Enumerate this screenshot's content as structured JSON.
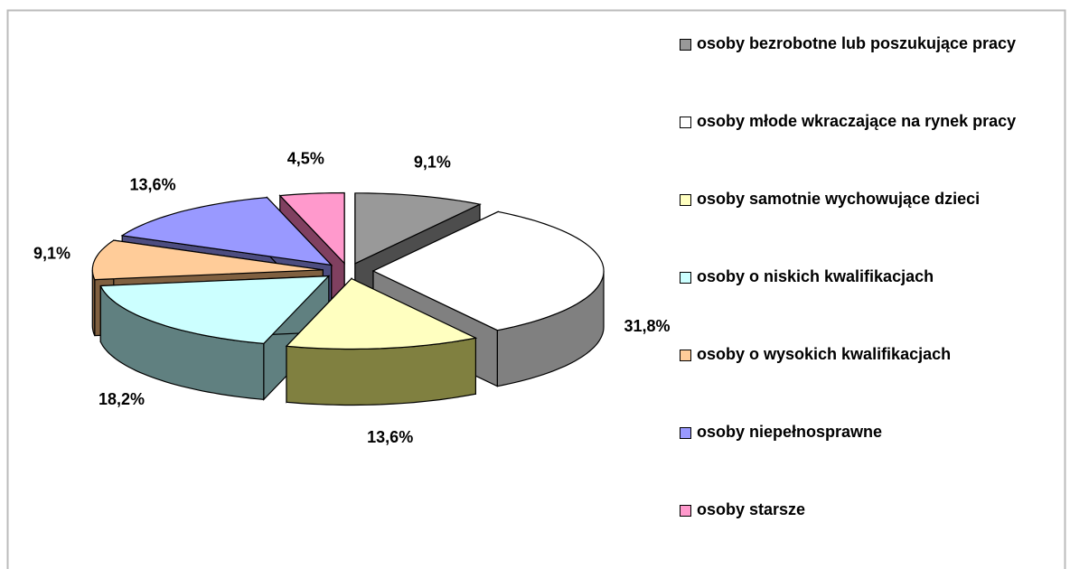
{
  "chart_data": {
    "type": "pie3d",
    "categories": [
      "osoby bezrobotne lub poszukujące pracy",
      "osoby młode wkraczające na rynek pracy",
      "osoby samotnie wychowujące dzieci",
      "osoby o niskich kwalifikacjach",
      "osoby o wysokich kwalifikacjach",
      "osoby niepełnosprawne",
      "osoby starsze"
    ],
    "values": [
      9.1,
      31.8,
      13.6,
      18.2,
      9.1,
      13.6,
      4.5
    ],
    "value_labels": [
      "9,1%",
      "31,8%",
      "13,6%",
      "18,2%",
      "9,1%",
      "13,6%",
      "4,5%"
    ],
    "colors": [
      "#999999",
      "#ffffff",
      "#ffffc0",
      "#ccffff",
      "#ffcc99",
      "#9999ff",
      "#ff99cc"
    ],
    "side_colors": [
      "#4d4d4d",
      "#808080",
      "#808040",
      "#608080",
      "#806040",
      "#4d4d80",
      "#804060"
    ],
    "legend": "right"
  }
}
